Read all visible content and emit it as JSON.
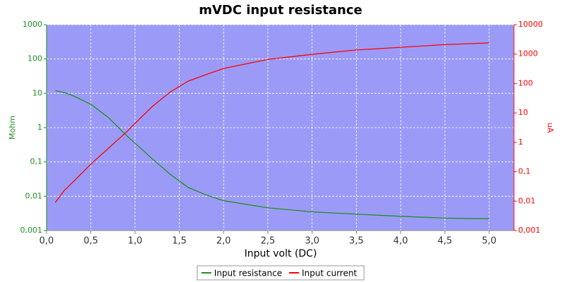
{
  "chart_data": {
    "type": "line",
    "title": "mVDC input resistance",
    "x_label": "Input volt (DC)",
    "y_label": "Mohm",
    "y2_label": "uA",
    "x": [
      0.1,
      0.2,
      0.3,
      0.5,
      0.7,
      0.9,
      1.0,
      1.2,
      1.4,
      1.6,
      1.8,
      2.0,
      2.5,
      3.0,
      3.5,
      4.0,
      4.5,
      5.0
    ],
    "series": [
      {
        "name": "Input resistance",
        "color": "#1f8f1f",
        "axis": "y",
        "values": [
          12,
          10.5,
          8.5,
          4.8,
          1.95,
          0.6,
          0.35,
          0.12,
          0.043,
          0.018,
          0.011,
          0.0074,
          0.0046,
          0.0035,
          0.003,
          0.0026,
          0.0023,
          0.0022
        ]
      },
      {
        "name": "Input current",
        "color": "#ff0000",
        "axis": "y2",
        "values": [
          0.009,
          0.023,
          0.045,
          0.18,
          0.63,
          2.2,
          4.4,
          17,
          52,
          120,
          200,
          325,
          660,
          980,
          1380,
          1700,
          2100,
          2400
        ]
      }
    ],
    "xlim": [
      0,
      5.28
    ],
    "xticks": [
      {
        "value": 0,
        "label": "0,0"
      },
      {
        "value": 0.5,
        "label": "0,5"
      },
      {
        "value": 1,
        "label": "1,0"
      },
      {
        "value": 1.5,
        "label": "1,5"
      },
      {
        "value": 2,
        "label": "2,0"
      },
      {
        "value": 2.5,
        "label": "2,5"
      },
      {
        "value": 3,
        "label": "3,0"
      },
      {
        "value": 3.5,
        "label": "3,5"
      },
      {
        "value": 4,
        "label": "4,0"
      },
      {
        "value": 4.5,
        "label": "4,5"
      },
      {
        "value": 5,
        "label": "5,0"
      }
    ],
    "ylim": [
      0.001,
      1000
    ],
    "ylog": true,
    "yticks": [
      {
        "value": 0.001,
        "label": "0,001"
      },
      {
        "value": 0.01,
        "label": "0,01"
      },
      {
        "value": 0.1,
        "label": "0,1"
      },
      1,
      10,
      100,
      1000
    ],
    "y2lim": [
      0.001,
      10000
    ],
    "y2log": true,
    "y2ticks": [
      {
        "value": 0.001,
        "label": "0,001"
      },
      {
        "value": 0.01,
        "label": "0,01"
      },
      {
        "value": 0.1,
        "label": "0,1"
      },
      1,
      10,
      100,
      1000,
      10000
    ],
    "grid": true,
    "legend": "bottom",
    "plot_background": "#9b9bf7"
  }
}
